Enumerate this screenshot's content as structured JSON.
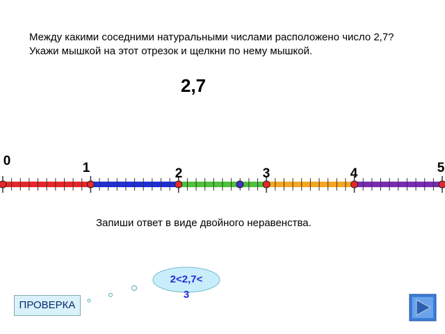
{
  "question": {
    "lines": [
      "Между какими соседними натуральными числами расположено число 2,7?",
      "Укажи мышкой на этот отрезок и щелкни по нему мышкой."
    ]
  },
  "number": "2,7",
  "number_line": {
    "labels": [
      "0",
      "1",
      "2",
      "3",
      "4",
      "5"
    ],
    "colors": [
      "#e8262a",
      "#1f2fd6",
      "#4fc13b",
      "#f5a623",
      "#7a2bb5"
    ]
  },
  "instruction": "Запиши ответ в виде двойного неравенства.",
  "answer": {
    "lines": [
      "2<2,7<",
      "3"
    ]
  },
  "check_button": "ПРОВЕРКА"
}
